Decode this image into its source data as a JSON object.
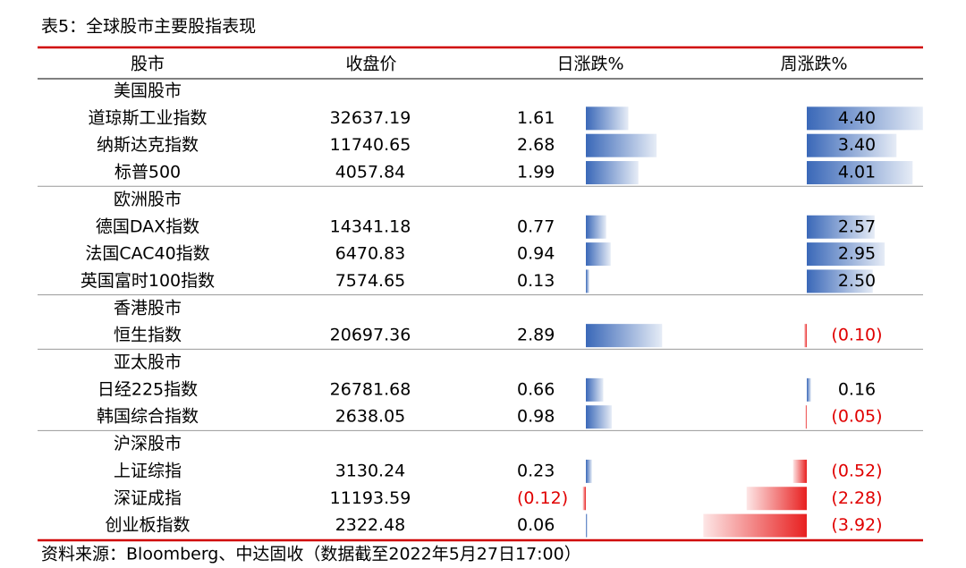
{
  "title": "表5：全球股市主要股指表现",
  "table": {
    "columns": [
      "股市",
      "收盘价",
      "日涨跌%",
      "周涨跌%"
    ],
    "groups": [
      {
        "name": "美国股市",
        "rows": [
          {
            "name": "道琼斯工业指数",
            "close": "32637.19",
            "day": 1.61,
            "week": {
              "value": 4.4,
              "label": "4.40"
            }
          },
          {
            "name": "纳斯达克指数",
            "close": "11740.65",
            "day": 2.68,
            "week": {
              "value": 3.4,
              "label": "3.40"
            }
          },
          {
            "name": "标普500",
            "close": "4057.84",
            "day": 1.99,
            "week": 4.01
          }
        ]
      },
      {
        "name": "欧洲股市",
        "rows": [
          {
            "name": "德国DAX指数",
            "close": "14341.18",
            "day": 0.77,
            "week": 2.57
          },
          {
            "name": "法国CAC40指数",
            "close": "6470.83",
            "day": 0.94,
            "week": 2.95
          },
          {
            "name": "英国富时100指数",
            "close": "7574.65",
            "day": 0.13,
            "week": {
              "value": 2.5,
              "label": "2.50"
            }
          }
        ]
      },
      {
        "name": "香港股市",
        "rows": [
          {
            "name": "恒生指数",
            "close": "20697.36",
            "day": 2.89,
            "week": {
              "value": -0.1,
              "label": "(0.10)"
            }
          }
        ]
      },
      {
        "name": "亚太股市",
        "rows": [
          {
            "name": "日经225指数",
            "close": "26781.68",
            "day": 0.66,
            "week": 0.16
          },
          {
            "name": "韩国综合指数",
            "close": "2638.05",
            "day": 0.98,
            "week": {
              "value": -0.05,
              "label": "(0.05)"
            }
          }
        ]
      },
      {
        "name": "沪深股市",
        "rows": [
          {
            "name": "上证综指",
            "close": "3130.24",
            "day": 0.23,
            "week": {
              "value": -0.52,
              "label": "(0.52)"
            }
          },
          {
            "name": "深证成指",
            "close": "11193.59",
            "day": {
              "value": -0.12,
              "label": "(0.12)"
            },
            "week": {
              "value": -2.28,
              "label": "(2.28)"
            }
          },
          {
            "name": "创业板指数",
            "close": "2322.48",
            "day": 0.06,
            "week": {
              "value": -3.92,
              "label": "(3.92)"
            }
          }
        ]
      }
    ]
  },
  "footnote": "资料来源：Bloomberg、中达固收（数据截至2022年5月27日17:00）"
}
